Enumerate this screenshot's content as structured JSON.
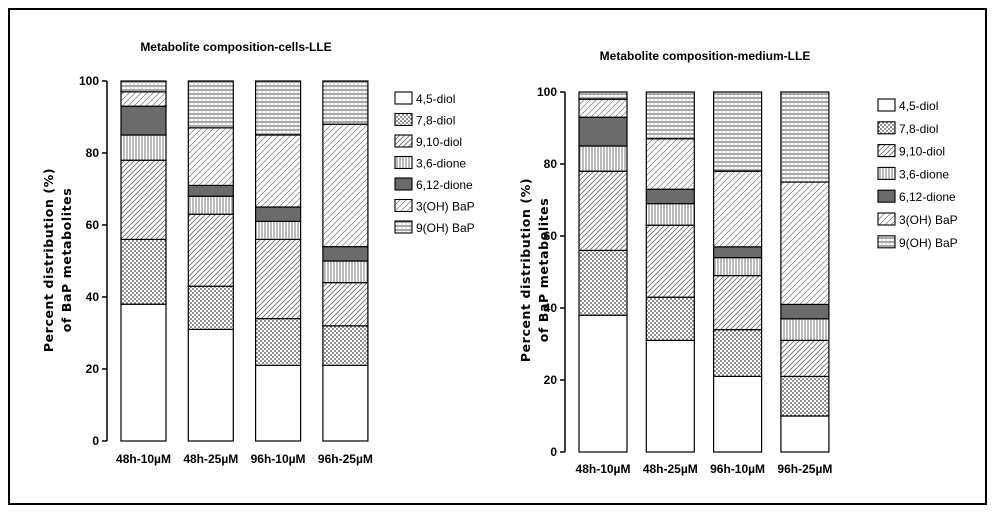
{
  "chart_data": [
    {
      "type": "bar",
      "stacked": true,
      "title": "Metabolite composition-cells-LLE",
      "ylabel": "Percent distribution (%) of BaP metabolites",
      "xlabel": "",
      "ylim": [
        0,
        100
      ],
      "yticks": [
        "0",
        "20",
        "40",
        "60",
        "80",
        "100"
      ],
      "categories": [
        "48h-10uM",
        "48h-25uM",
        "96h-10uM",
        "96h-25uM"
      ],
      "legend_position": "right",
      "series": [
        {
          "name": "4,5-diol",
          "values": [
            38,
            31,
            21,
            21
          ]
        },
        {
          "name": "7,8-diol",
          "values": [
            18,
            12,
            13,
            11
          ]
        },
        {
          "name": "9,10-diol",
          "values": [
            22,
            20,
            22,
            12
          ]
        },
        {
          "name": "3,6-dione",
          "values": [
            7,
            5,
            5,
            6
          ]
        },
        {
          "name": "6,12-dione",
          "values": [
            8,
            3,
            4,
            4
          ]
        },
        {
          "name": "3(OH) BaP",
          "values": [
            4,
            16,
            20,
            34
          ]
        },
        {
          "name": "9(OH) BaP",
          "values": [
            3,
            13,
            15,
            12
          ]
        }
      ]
    },
    {
      "type": "bar",
      "stacked": true,
      "title": "Metabolite composition-medium-LLE",
      "ylabel": "Percent distribution (%) of BaP metabolites",
      "xlabel": "",
      "ylim": [
        0,
        100
      ],
      "yticks": [
        "0",
        "20",
        "40",
        "60",
        "80",
        "100"
      ],
      "categories": [
        "48h-10uM",
        "48h-25uM",
        "96h-10uM",
        "96h-25uM"
      ],
      "legend_position": "top-right",
      "series": [
        {
          "name": "4,5-diol",
          "values": [
            38,
            31,
            21,
            10
          ]
        },
        {
          "name": "7,8-diol",
          "values": [
            18,
            12,
            13,
            11
          ]
        },
        {
          "name": "9,10-diol",
          "values": [
            22,
            20,
            15,
            10
          ]
        },
        {
          "name": "3,6-dione",
          "values": [
            7,
            6,
            5,
            6
          ]
        },
        {
          "name": "6,12-dione",
          "values": [
            8,
            4,
            3,
            4
          ]
        },
        {
          "name": "3(OH) BaP",
          "values": [
            5,
            14,
            21,
            34
          ]
        },
        {
          "name": "9(OH) BaP",
          "values": [
            2,
            13,
            22,
            25
          ]
        }
      ]
    }
  ]
}
